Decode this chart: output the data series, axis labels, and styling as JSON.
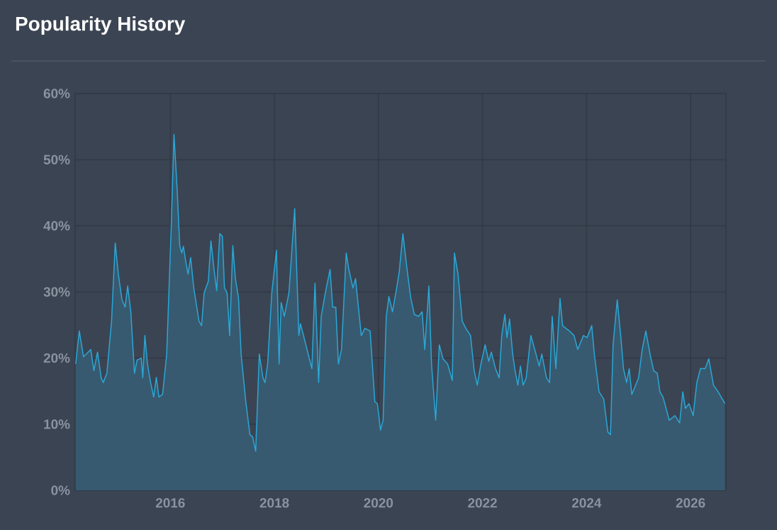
{
  "chart_data": {
    "type": "area",
    "title": "Popularity History",
    "x": [
      2014.18,
      2014.25,
      2014.33,
      2014.47,
      2014.53,
      2014.6,
      2014.67,
      2014.71,
      2014.78,
      2014.87,
      2014.94,
      2015.0,
      2015.07,
      2015.13,
      2015.18,
      2015.24,
      2015.31,
      2015.36,
      2015.44,
      2015.47,
      2015.51,
      2015.56,
      2015.62,
      2015.68,
      2015.73,
      2015.78,
      2015.85,
      2015.93,
      2016.02,
      2016.07,
      2016.13,
      2016.18,
      2016.22,
      2016.25,
      2016.29,
      2016.34,
      2016.39,
      2016.45,
      2016.55,
      2016.6,
      2016.65,
      2016.73,
      2016.78,
      2016.84,
      2016.89,
      2016.95,
      2017.0,
      2017.04,
      2017.09,
      2017.14,
      2017.2,
      2017.25,
      2017.31,
      2017.36,
      2017.45,
      2017.53,
      2017.58,
      2017.64,
      2017.71,
      2017.78,
      2017.82,
      2017.87,
      2017.95,
      2017.98,
      2018.04,
      2018.09,
      2018.13,
      2018.19,
      2018.28,
      2018.39,
      2018.47,
      2018.5,
      2018.56,
      2018.65,
      2018.72,
      2018.78,
      2018.85,
      2018.9,
      2018.98,
      2019.07,
      2019.12,
      2019.18,
      2019.23,
      2019.29,
      2019.38,
      2019.43,
      2019.51,
      2019.56,
      2019.67,
      2019.74,
      2019.84,
      2019.93,
      2019.98,
      2020.04,
      2020.09,
      2020.15,
      2020.2,
      2020.27,
      2020.35,
      2020.4,
      2020.47,
      2020.55,
      2020.62,
      2020.69,
      2020.77,
      2020.84,
      2020.89,
      2020.97,
      2021.02,
      2021.1,
      2021.17,
      2021.24,
      2021.33,
      2021.42,
      2021.46,
      2021.53,
      2021.61,
      2021.68,
      2021.77,
      2021.84,
      2021.9,
      2021.97,
      2022.05,
      2022.12,
      2022.17,
      2022.25,
      2022.32,
      2022.37,
      2022.43,
      2022.47,
      2022.52,
      2022.58,
      2022.62,
      2022.68,
      2022.73,
      2022.78,
      2022.84,
      2022.93,
      2022.98,
      2023.09,
      2023.14,
      2023.23,
      2023.29,
      2023.34,
      2023.41,
      2023.49,
      2023.54,
      2023.67,
      2023.76,
      2023.83,
      2023.94,
      2024.01,
      2024.1,
      2024.15,
      2024.24,
      2024.33,
      2024.41,
      2024.46,
      2024.51,
      2024.59,
      2024.66,
      2024.71,
      2024.77,
      2024.82,
      2024.87,
      2025.0,
      2025.07,
      2025.14,
      2025.22,
      2025.29,
      2025.36,
      2025.41,
      2025.47,
      2025.59,
      2025.7,
      2025.79,
      2025.85,
      2025.9,
      2025.97,
      2026.05,
      2026.12,
      2026.19,
      2026.28,
      2026.35,
      2026.44,
      2026.53,
      2026.66
    ],
    "series": [
      {
        "color": "#2aa7d6",
        "values": [
          19.1,
          24.1,
          20.2,
          21.3,
          18.1,
          20.9,
          17.0,
          16.3,
          17.7,
          25.6,
          37.4,
          32.7,
          28.8,
          27.7,
          30.9,
          27.0,
          17.7,
          19.7,
          20.0,
          17.0,
          23.4,
          19.1,
          16.3,
          14.1,
          17.1,
          14.1,
          14.5,
          20.6,
          40.6,
          53.8,
          45.6,
          37.0,
          35.9,
          36.9,
          34.9,
          32.7,
          35.2,
          30.6,
          25.6,
          24.9,
          29.9,
          31.6,
          37.7,
          33.4,
          30.2,
          38.8,
          38.4,
          30.6,
          29.9,
          23.4,
          37.0,
          32.0,
          29.1,
          20.6,
          13.4,
          8.4,
          8.1,
          5.9,
          20.6,
          17.0,
          16.3,
          19.1,
          29.9,
          32.0,
          36.3,
          19.1,
          28.4,
          26.3,
          29.9,
          42.6,
          23.4,
          25.2,
          23.4,
          20.6,
          18.4,
          31.3,
          16.3,
          26.3,
          29.9,
          33.4,
          27.7,
          27.7,
          19.1,
          21.3,
          35.9,
          33.4,
          30.6,
          32.0,
          23.4,
          24.5,
          24.1,
          13.4,
          13.1,
          9.1,
          10.6,
          26.3,
          29.3,
          27.0,
          30.6,
          33.1,
          38.8,
          33.4,
          29.1,
          26.6,
          26.3,
          27.0,
          21.3,
          30.9,
          19.1,
          10.6,
          22.0,
          19.9,
          19.1,
          16.6,
          35.9,
          32.7,
          25.6,
          24.5,
          23.4,
          18.1,
          15.9,
          19.1,
          22.0,
          19.5,
          20.9,
          18.4,
          17.0,
          23.4,
          26.6,
          23.1,
          25.9,
          20.6,
          18.4,
          15.9,
          18.8,
          15.9,
          17.0,
          23.4,
          22.0,
          18.8,
          20.6,
          17.0,
          16.3,
          26.3,
          18.4,
          29.0,
          24.9,
          24.1,
          23.4,
          21.3,
          23.4,
          23.1,
          24.9,
          20.6,
          14.9,
          13.8,
          8.8,
          8.4,
          22.0,
          28.8,
          23.1,
          18.4,
          16.3,
          18.4,
          14.5,
          17.0,
          21.3,
          24.1,
          20.6,
          18.1,
          17.7,
          14.9,
          14.1,
          10.6,
          11.3,
          10.2,
          14.9,
          12.4,
          13.1,
          11.3,
          16.3,
          18.4,
          18.4,
          19.9,
          15.9,
          14.9,
          13.1
        ]
      }
    ],
    "xlim": [
      2014.17,
      2026.68
    ],
    "xticks": [
      2016,
      2018,
      2020,
      2022,
      2024,
      2026
    ],
    "ylim": [
      0,
      60
    ],
    "yticks": [
      {
        "value": 0,
        "label": "0%"
      },
      {
        "value": 10,
        "label": "10%"
      },
      {
        "value": 20,
        "label": "20%"
      },
      {
        "value": 30,
        "label": "30%"
      },
      {
        "value": 40,
        "label": "40%"
      },
      {
        "value": 50,
        "label": "50%"
      },
      {
        "value": 60,
        "label": "60%"
      }
    ],
    "grid": true
  }
}
